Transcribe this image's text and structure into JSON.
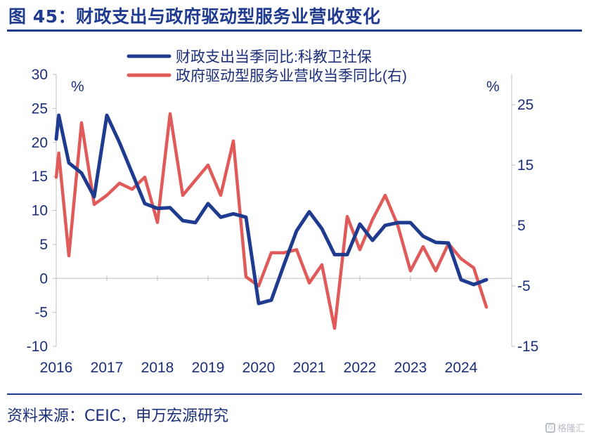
{
  "title": "图 45：财政支出与政府驱动型服务业营收变化",
  "source": "资料来源：CEIC，申万宏源研究",
  "watermark": "格隆汇",
  "chart_data": {
    "type": "line",
    "x_tick_labels": [
      "2016",
      "2017",
      "2018",
      "2019",
      "2020",
      "2021",
      "2022",
      "2023",
      "2024"
    ],
    "y_left": {
      "unit": "%",
      "ylim": [
        -10,
        30
      ],
      "ticks": [
        -10,
        -5,
        0,
        5,
        10,
        15,
        20,
        25,
        30
      ]
    },
    "y_right": {
      "unit": "%",
      "ylim": [
        -15,
        30
      ],
      "ticks": [
        -15,
        -5,
        5,
        15,
        25
      ]
    },
    "legend_position": "top",
    "series": [
      {
        "name": "财政支出当季同比:科教卫社保",
        "axis": "left",
        "color": "#1f3b8f",
        "x": [
          2016.0,
          2016.05,
          2016.25,
          2016.5,
          2016.75,
          2017.0,
          2017.25,
          2017.5,
          2017.75,
          2018.0,
          2018.25,
          2018.5,
          2018.75,
          2019.0,
          2019.25,
          2019.5,
          2019.75,
          2020.0,
          2020.25,
          2020.5,
          2020.75,
          2021.0,
          2021.25,
          2021.5,
          2021.75,
          2022.0,
          2022.25,
          2022.5,
          2022.75,
          2023.0,
          2023.25,
          2023.5,
          2023.75,
          2024.0,
          2024.25,
          2024.5
        ],
        "values": [
          20.5,
          24,
          17,
          15.5,
          12,
          24,
          20,
          15.5,
          11,
          10.3,
          10.4,
          8.5,
          8.2,
          11,
          9,
          9.5,
          9,
          -3.7,
          -3.2,
          2,
          7,
          9.8,
          7.3,
          3.5,
          3.5,
          8,
          5.6,
          7.8,
          8.2,
          8.2,
          6.2,
          5.3,
          5.2,
          -0.2,
          -0.9,
          -0.2
        ]
      },
      {
        "name": "政府驱动型服务业营收当季同比(右)",
        "axis": "right",
        "color": "#e05a5a",
        "x": [
          2016.0,
          2016.05,
          2016.25,
          2016.5,
          2016.75,
          2017.0,
          2017.25,
          2017.5,
          2017.75,
          2018.0,
          2018.25,
          2018.5,
          2018.75,
          2019.0,
          2019.25,
          2019.5,
          2019.75,
          2020.0,
          2020.25,
          2020.5,
          2020.75,
          2021.0,
          2021.25,
          2021.5,
          2021.75,
          2022.0,
          2022.25,
          2022.5,
          2022.75,
          2023.0,
          2023.25,
          2023.5,
          2023.75,
          2024.0,
          2024.25,
          2024.5
        ],
        "values": [
          13,
          17,
          0,
          22,
          8.5,
          10,
          12,
          11,
          13,
          5.5,
          23.5,
          10,
          12.5,
          15,
          10,
          19,
          -3.5,
          -5,
          0.5,
          0.5,
          1,
          -4.5,
          -1.5,
          -12,
          6.5,
          1,
          6,
          10,
          5,
          -2.5,
          1.5,
          -2.5,
          2,
          -0.5,
          -2,
          -8.5
        ]
      }
    ]
  }
}
